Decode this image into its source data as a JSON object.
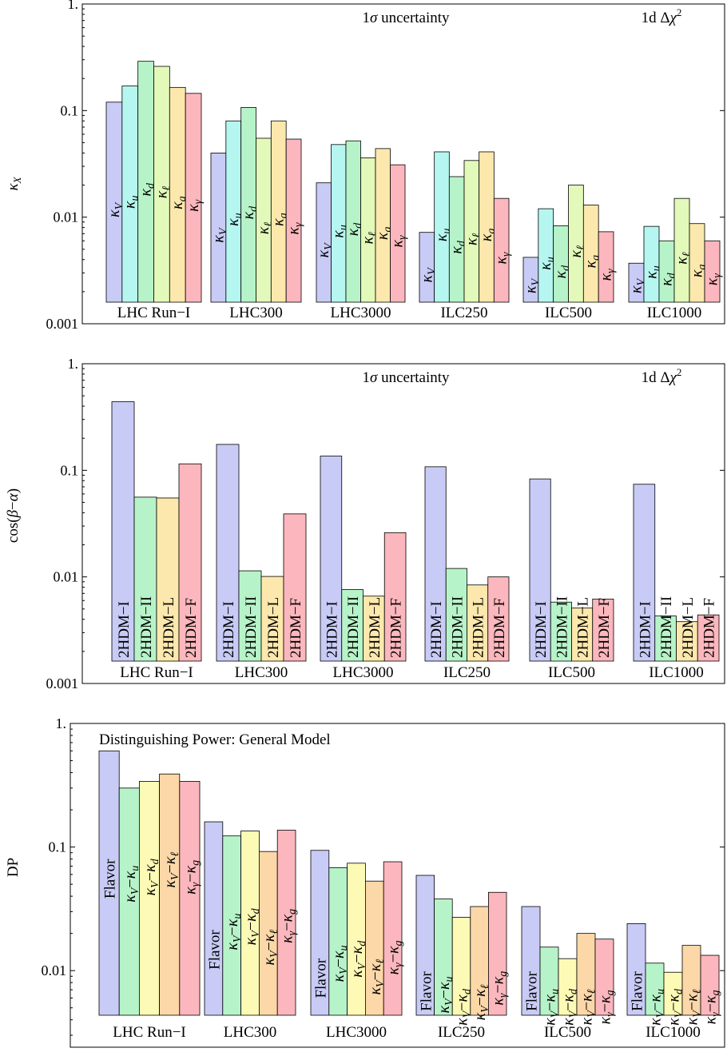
{
  "colors": [
    "#c8cbf5",
    "#b5f7f0",
    "#b7f3c8",
    "#e3f9b9",
    "#fce8ac",
    "#fbc8b0",
    "#fbb7bd"
  ],
  "chart_data": [
    {
      "type": "bar",
      "scale": "log",
      "ylabel": "κX",
      "annotations": [
        "1σ uncertainty",
        "1d Δχ2"
      ],
      "ylim": [
        0.001,
        1
      ],
      "yticks": [
        "0.001",
        "0.01",
        "0.1",
        "1."
      ],
      "categories": [
        "LHC Run−I",
        "LHC300",
        "LHC3000",
        "ILC250",
        "ILC500",
        "ILC1000"
      ],
      "series": [
        {
          "name": "κV",
          "color": "#c8cbf5",
          "values": [
            0.12,
            0.04,
            0.021,
            0.0072,
            0.0042,
            0.0037
          ]
        },
        {
          "name": "κu",
          "color": "#b5f7f0",
          "values": [
            0.17,
            0.08,
            0.048,
            0.041,
            0.012,
            0.0082
          ]
        },
        {
          "name": "κd",
          "color": "#b7f3c8",
          "values": [
            0.29,
            0.107,
            0.052,
            0.024,
            0.0083,
            0.006
          ]
        },
        {
          "name": "κℓ",
          "color": "#e3f9b9",
          "values": [
            0.26,
            0.055,
            0.036,
            0.034,
            0.02,
            0.015
          ]
        },
        {
          "name": "κg",
          "color": "#fce8ac",
          "values": [
            0.165,
            0.08,
            0.044,
            0.041,
            0.013,
            0.0087
          ]
        },
        {
          "name": "κγ",
          "color": "#fbb7bd",
          "values": [
            0.145,
            0.054,
            0.031,
            0.015,
            0.0073,
            0.006
          ]
        }
      ]
    },
    {
      "type": "bar",
      "scale": "log",
      "ylabel": "cos(β−α)",
      "annotations": [
        "1σ uncertainty",
        "1d Δχ2"
      ],
      "ylim": [
        0.001,
        1
      ],
      "yticks": [
        "0.001",
        "0.01",
        "0.1",
        "1."
      ],
      "categories": [
        "LHC Run−I",
        "LHC300",
        "LHC3000",
        "ILC250",
        "ILC500",
        "ILC1000"
      ],
      "series": [
        {
          "name": "2HDM−I",
          "color": "#c8cbf5",
          "values": [
            0.44,
            0.175,
            0.136,
            0.108,
            0.083,
            0.074
          ]
        },
        {
          "name": "2HDM−II",
          "color": "#b7f3c8",
          "values": [
            0.056,
            0.0114,
            0.0076,
            0.012,
            0.0058,
            0.0043
          ]
        },
        {
          "name": "2HDM−L",
          "color": "#fce8ac",
          "values": [
            0.055,
            0.0101,
            0.0066,
            0.0084,
            0.0051,
            0.0038
          ]
        },
        {
          "name": "2HDM−F",
          "color": "#fbb7bd",
          "values": [
            0.115,
            0.039,
            0.026,
            0.01,
            0.0062,
            0.0044
          ]
        }
      ]
    },
    {
      "type": "bar",
      "scale": "log",
      "ylabel": "DP",
      "annotations": [
        "Distinguishing Power: General Model"
      ],
      "ylim": [
        0.0024,
        1
      ],
      "yticks": [
        "0.01",
        "0.1",
        "1."
      ],
      "categories": [
        "LHC Run−I",
        "LHC300",
        "LHC3000",
        "ILC250",
        "ILC500",
        "ILC1000"
      ],
      "series": [
        {
          "name": "Flavor",
          "color": "#c8cbf5",
          "values": [
            0.6,
            0.16,
            0.094,
            0.059,
            0.033,
            0.024
          ]
        },
        {
          "name": "κV−κu",
          "color": "#b7f3c8",
          "values": [
            0.3,
            0.123,
            0.068,
            0.038,
            0.0155,
            0.0115
          ]
        },
        {
          "name": "κV−κd",
          "color": "#fdfab5",
          "values": [
            0.34,
            0.135,
            0.074,
            0.027,
            0.0125,
            0.0097
          ]
        },
        {
          "name": "κV−κℓ",
          "color": "#fcd7a8",
          "values": [
            0.39,
            0.092,
            0.053,
            0.033,
            0.02,
            0.016
          ]
        },
        {
          "name": "κγ−κg",
          "color": "#fbb7bd",
          "values": [
            0.34,
            0.137,
            0.076,
            0.043,
            0.018,
            0.0133
          ]
        }
      ]
    }
  ]
}
